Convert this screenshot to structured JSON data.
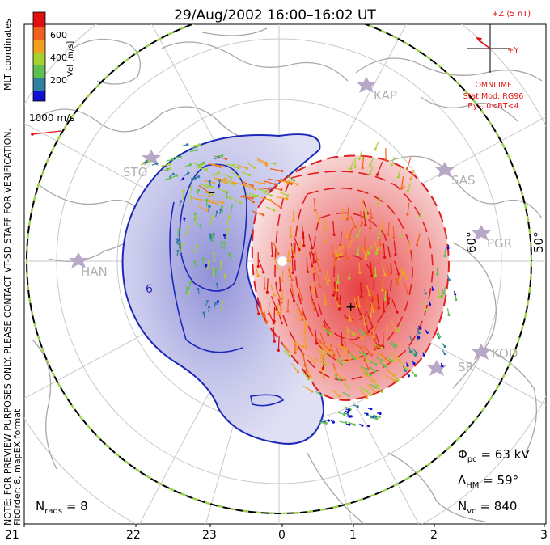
{
  "title": "29/Aug/2002  16:00–16:02  UT",
  "colorbar": {
    "unit_label": "Vel [m/s]",
    "ticks": [
      "200",
      "400",
      "600"
    ],
    "colors": [
      "#1010d0",
      "#2f7fa0",
      "#5fc050",
      "#a6d030",
      "#f0a020",
      "#f06020",
      "#e01010"
    ]
  },
  "reference_vector": {
    "label": "1000 m/s",
    "color": "#e01010"
  },
  "side_notes": {
    "coords": "MLT coordinates",
    "preview": "NOTE: FOR PREVIEW PURPOSES ONLY. PLEASE CONTACT VT-SD STAFF FOR VERIFICATION.",
    "fit": "FitOrder: 8, mapEX format"
  },
  "imf": {
    "axis_z": "+Z (5 nT)",
    "axis_y": "+Y",
    "source": "OMNI IMF",
    "model": "Stat Mod: RG96",
    "condition": "By–, 0<BT<4",
    "color": "#e01010"
  },
  "stations": [
    "KAP",
    "SAS",
    "PGR",
    "KOD",
    "STO",
    "HAN",
    "SR"
  ],
  "latitudes": [
    "60°",
    "50°"
  ],
  "stats": {
    "phi_symbol": "Φ",
    "phi_sub": "pc",
    "phi_value": "= 63 kV",
    "lambda_symbol": "Λ",
    "lambda_sub": "HM",
    "lambda_value": "= 59°",
    "nvc_symbol": "N",
    "nvc_sub": "vc",
    "nvc_value": "= 840",
    "nrads_symbol": "N",
    "nrads_sub": "rads",
    "nrads_value": "= 8"
  },
  "mlt_ticks": [
    "21",
    "22",
    "23",
    "0",
    "1",
    "2",
    "3"
  ],
  "contour_labels": {
    "negative": "–",
    "positive": "+",
    "neg_lower": "6"
  }
}
